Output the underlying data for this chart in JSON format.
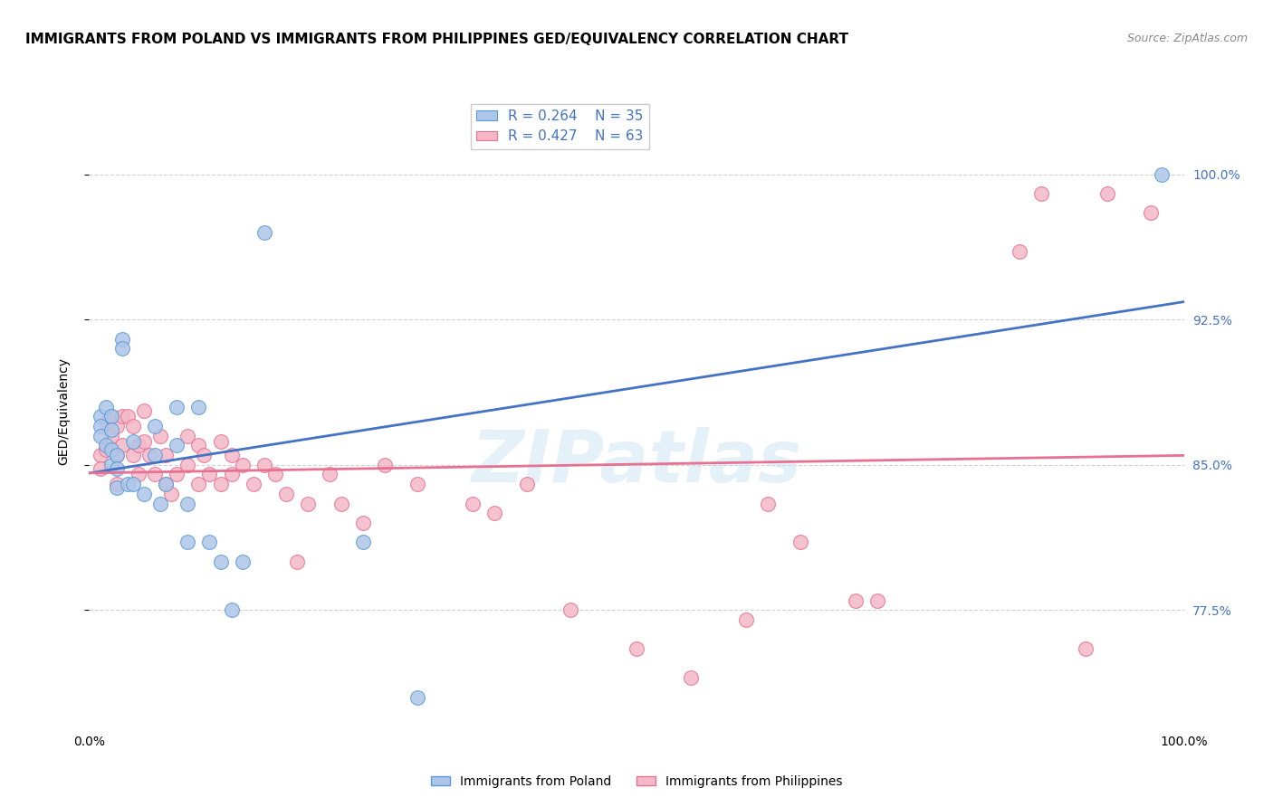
{
  "title": "IMMIGRANTS FROM POLAND VS IMMIGRANTS FROM PHILIPPINES GED/EQUIVALENCY CORRELATION CHART",
  "source": "Source: ZipAtlas.com",
  "ylabel": "GED/Equivalency",
  "yticks": [
    "77.5%",
    "85.0%",
    "92.5%",
    "100.0%"
  ],
  "ytick_vals": [
    0.775,
    0.85,
    0.925,
    1.0
  ],
  "xlim": [
    0.0,
    1.0
  ],
  "ylim": [
    0.715,
    1.04
  ],
  "poland_color": "#aec6e8",
  "poland_edge": "#5b9bd5",
  "philippines_color": "#f4b8c8",
  "philippines_edge": "#e87090",
  "poland_line_color": "#4472c4",
  "philippines_line_color": "#e87090",
  "legend_text_color": "#4472c4",
  "poland_R": 0.264,
  "poland_N": 35,
  "philippines_R": 0.427,
  "philippines_N": 63,
  "poland_x": [
    0.01,
    0.01,
    0.01,
    0.015,
    0.015,
    0.02,
    0.02,
    0.02,
    0.02,
    0.025,
    0.025,
    0.025,
    0.03,
    0.03,
    0.035,
    0.04,
    0.04,
    0.05,
    0.06,
    0.06,
    0.065,
    0.07,
    0.08,
    0.08,
    0.09,
    0.09,
    0.1,
    0.11,
    0.12,
    0.13,
    0.14,
    0.16,
    0.25,
    0.3,
    0.98
  ],
  "poland_y": [
    0.875,
    0.87,
    0.865,
    0.88,
    0.86,
    0.875,
    0.868,
    0.858,
    0.85,
    0.855,
    0.848,
    0.838,
    0.915,
    0.91,
    0.84,
    0.862,
    0.84,
    0.835,
    0.87,
    0.855,
    0.83,
    0.84,
    0.88,
    0.86,
    0.83,
    0.81,
    0.88,
    0.81,
    0.8,
    0.775,
    0.8,
    0.97,
    0.81,
    0.73,
    1.0
  ],
  "philippines_x": [
    0.01,
    0.01,
    0.015,
    0.015,
    0.02,
    0.02,
    0.025,
    0.025,
    0.025,
    0.03,
    0.03,
    0.035,
    0.04,
    0.04,
    0.045,
    0.045,
    0.05,
    0.05,
    0.055,
    0.06,
    0.065,
    0.07,
    0.07,
    0.075,
    0.08,
    0.09,
    0.09,
    0.1,
    0.1,
    0.105,
    0.11,
    0.12,
    0.12,
    0.13,
    0.13,
    0.14,
    0.15,
    0.16,
    0.17,
    0.18,
    0.19,
    0.2,
    0.22,
    0.23,
    0.25,
    0.27,
    0.3,
    0.35,
    0.37,
    0.4,
    0.44,
    0.5,
    0.55,
    0.6,
    0.62,
    0.65,
    0.7,
    0.72,
    0.85,
    0.87,
    0.91,
    0.93,
    0.97
  ],
  "philippines_y": [
    0.855,
    0.848,
    0.872,
    0.858,
    0.875,
    0.865,
    0.87,
    0.855,
    0.84,
    0.875,
    0.86,
    0.875,
    0.87,
    0.855,
    0.86,
    0.845,
    0.878,
    0.862,
    0.855,
    0.845,
    0.865,
    0.855,
    0.84,
    0.835,
    0.845,
    0.865,
    0.85,
    0.86,
    0.84,
    0.855,
    0.845,
    0.862,
    0.84,
    0.845,
    0.855,
    0.85,
    0.84,
    0.85,
    0.845,
    0.835,
    0.8,
    0.83,
    0.845,
    0.83,
    0.82,
    0.85,
    0.84,
    0.83,
    0.825,
    0.84,
    0.775,
    0.755,
    0.74,
    0.77,
    0.83,
    0.81,
    0.78,
    0.78,
    0.96,
    0.99,
    0.755,
    0.99,
    0.98
  ],
  "watermark": "ZIPatlas",
  "grid_color": "#cccccc",
  "background_color": "#ffffff",
  "title_fontsize": 11,
  "axis_label_fontsize": 10,
  "tick_fontsize": 10,
  "legend_fontsize": 11
}
